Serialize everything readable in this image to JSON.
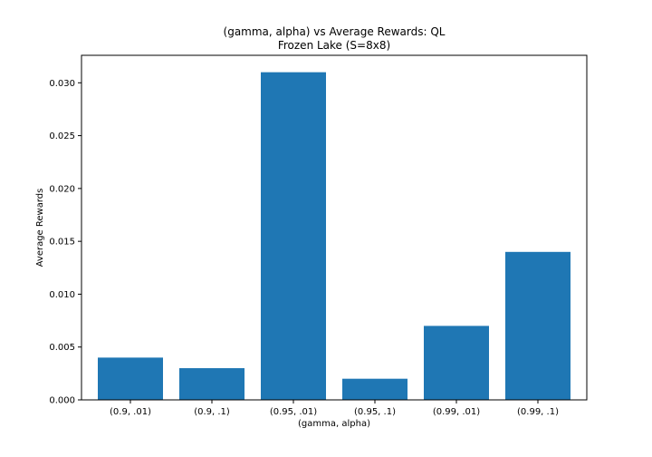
{
  "chart_data": {
    "type": "bar",
    "title": "(gamma, alpha) vs Average Rewards: QL",
    "subtitle": "Frozen Lake (S=8x8)",
    "xlabel": "(gamma, alpha)",
    "ylabel": "Average Rewards",
    "categories": [
      "(0.9, .01)",
      "(0.9, .1)",
      "(0.95, .01)",
      "(0.95, .1)",
      "(0.99, .01)",
      "(0.99, .1)"
    ],
    "values": [
      0.004,
      0.003,
      0.031,
      0.002,
      0.007,
      0.014
    ],
    "ylim": [
      0,
      0.0326
    ],
    "yticks": [
      0.0,
      0.005,
      0.01,
      0.015,
      0.02,
      0.025,
      0.03
    ],
    "ytick_labels": [
      "0.000",
      "0.005",
      "0.010",
      "0.015",
      "0.020",
      "0.025",
      "0.030"
    ],
    "bar_color": "#1f77b4",
    "grid": false,
    "legend": "none"
  }
}
